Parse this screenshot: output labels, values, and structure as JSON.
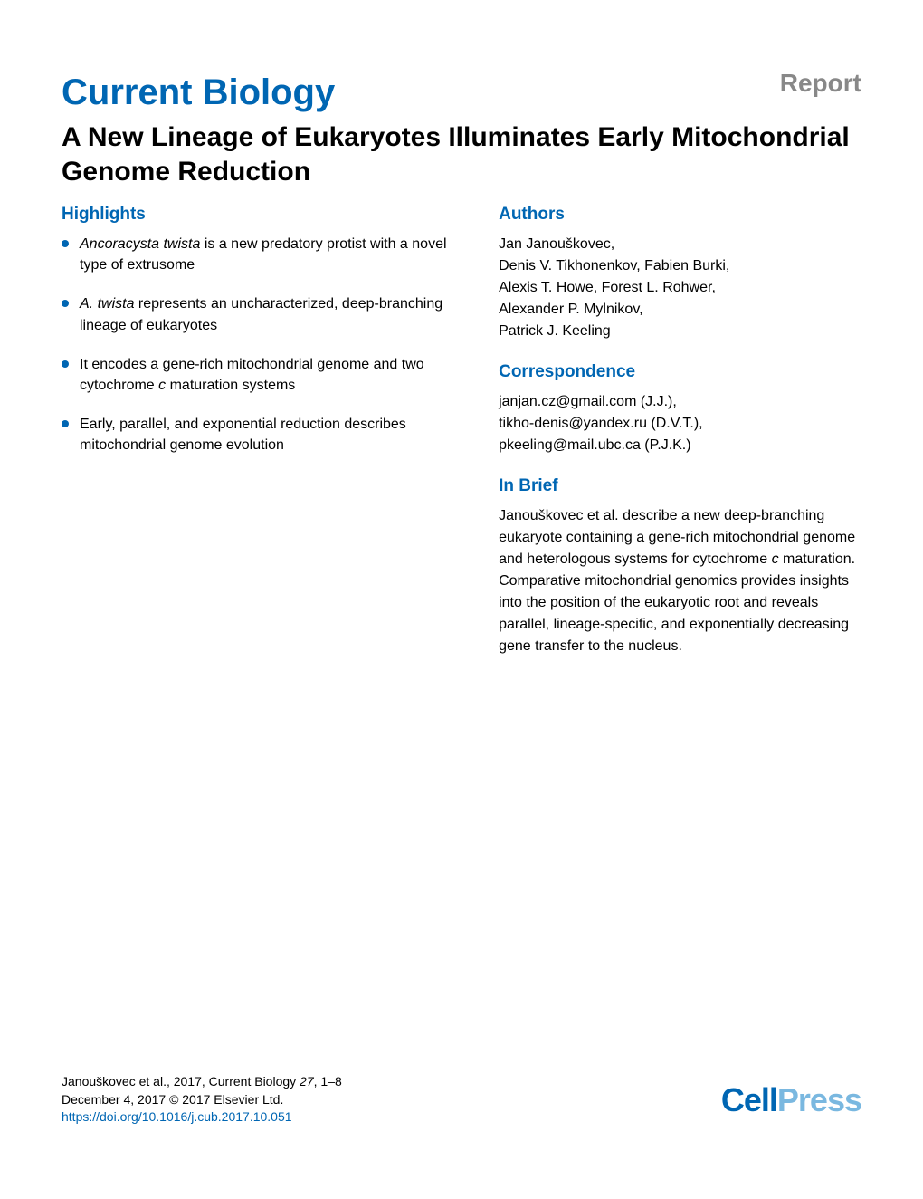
{
  "header": {
    "journal_name": "Current Biology",
    "report_label": "Report"
  },
  "article_title": "A New Lineage of Eukaryotes Illuminates Early Mitochondrial Genome Reduction",
  "highlights": {
    "heading": "Highlights",
    "items": [
      {
        "prefix_italic": "Ancoracysta twista",
        "text": " is a new predatory protist with a novel type of extrusome"
      },
      {
        "prefix_italic": "A. twista",
        "text": " represents an uncharacterized, deep-branching lineage of eukaryotes"
      },
      {
        "prefix": "It encodes a gene-rich mitochondrial genome and two cytochrome ",
        "mid_italic": "c",
        "suffix": " maturation systems"
      },
      {
        "full_text": "Early, parallel, and exponential reduction describes mitochondrial genome evolution"
      }
    ]
  },
  "authors": {
    "heading": "Authors",
    "text": "Jan Janouškovec,\nDenis V. Tikhonenkov, Fabien Burki,\nAlexis T. Howe, Forest L. Rohwer,\nAlexander P. Mylnikov,\nPatrick J. Keeling"
  },
  "correspondence": {
    "heading": "Correspondence",
    "text": "janjan.cz@gmail.com (J.J.),\ntikho-denis@yandex.ru (D.V.T.),\npkeeling@mail.ubc.ca (P.J.K.)"
  },
  "in_brief": {
    "heading": "In Brief",
    "prefix": "Janouškovec et al. describe a new deep-branching eukaryote containing a gene-rich mitochondrial genome and heterologous systems for cytochrome ",
    "mid_italic": "c",
    "suffix": " maturation. Comparative mitochondrial genomics provides insights into the position of the eukaryotic root and reveals parallel, lineage-specific, and exponentially decreasing gene transfer to the nucleus."
  },
  "footer": {
    "citation_line1_prefix": "Janouškovec et al., 2017, Current Biology ",
    "citation_line1_italic": "27",
    "citation_line1_suffix": ", 1–8",
    "citation_line2": "December 4, 2017 © 2017 Elsevier Ltd.",
    "doi": "https://doi.org/10.1016/j.cub.2017.10.051",
    "logo_cell": "Cell",
    "logo_press": "Press"
  },
  "colors": {
    "primary_blue": "#0066b3",
    "light_blue": "#7ab8e0",
    "gray": "#888888",
    "black": "#000000",
    "background": "#ffffff"
  }
}
